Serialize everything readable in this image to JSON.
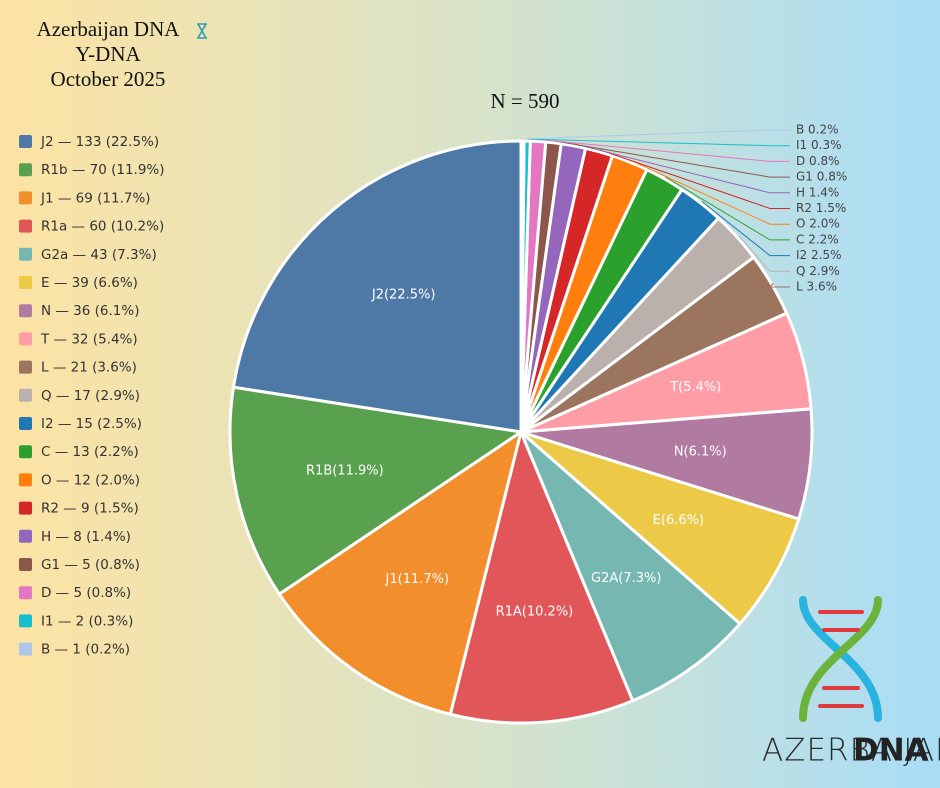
{
  "chart_data": {
    "type": "pie",
    "title": "Azerbaijan DNA",
    "subtitle": "Y-DNA",
    "date": "October 2025",
    "n_label": "N = 590",
    "categories": [
      "J2",
      "R1b",
      "J1",
      "R1a",
      "G2a",
      "E",
      "N",
      "T",
      "L",
      "Q",
      "I2",
      "C",
      "O",
      "R2",
      "H",
      "G1",
      "D",
      "I1",
      "B"
    ],
    "values": [
      133,
      70,
      69,
      60,
      43,
      39,
      36,
      32,
      21,
      17,
      15,
      13,
      12,
      9,
      8,
      5,
      5,
      2,
      1
    ],
    "value_labels": [
      "J2 — 133 (22.5%)",
      "R1b — 70 (11.9%)",
      "J1 — 69 (11.7%)",
      "R1a — 60 (10.2%)",
      "G2a — 43 (7.3%)",
      "E — 39 (6.6%)",
      "N — 36 (6.1%)",
      "T — 32 (5.4%)",
      "L — 21 (3.6%)",
      "Q — 17 (2.9%)",
      "I2 — 15 (2.5%)",
      "C — 13 (2.2%)",
      "O — 12 (2.0%)",
      "R2 — 9 (1.5%)",
      "H — 8 (1.4%)",
      "G1 — 5 (0.8%)",
      "D — 5 (0.8%)",
      "I1 — 2 (0.3%)",
      "B — 1 (0.2%)"
    ],
    "slice_labels": [
      "J2(22.5%)",
      "R1B(11.9%)",
      "J1(11.7%)",
      "R1A(10.2%)",
      "G2A(7.3%)",
      "E(6.6%)",
      "N(6.1%)",
      "T(5.4%)",
      null,
      null,
      null,
      null,
      null,
      null,
      null,
      null,
      null,
      null,
      null
    ],
    "callout_labels": [
      null,
      null,
      null,
      null,
      null,
      null,
      null,
      null,
      "L 3.6%",
      "Q 2.9%",
      "I2 2.5%",
      "C 2.2%",
      "O 2.0%",
      "R2 1.5%",
      "H 1.4%",
      "G1 0.8%",
      "D 0.8%",
      "I1 0.3%",
      "B 0.2%"
    ],
    "colors": [
      "#4e79a7",
      "#59a14f",
      "#f28e2b",
      "#e15759",
      "#76b7b2",
      "#edc948",
      "#b07aa1",
      "#ff9da7",
      "#9c755f",
      "#bab0ac",
      "#1f77b4",
      "#2ca02c",
      "#ff7f0e",
      "#d62728",
      "#9467bd",
      "#8c564b",
      "#e377c2",
      "#17becf",
      "#aec7e8"
    ]
  },
  "logo": {
    "word1": "AZERBAIJAN",
    "word2": "DNA"
  }
}
